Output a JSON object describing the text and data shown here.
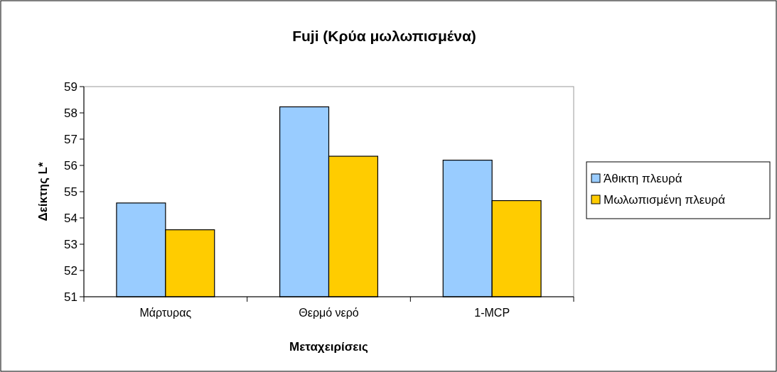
{
  "chart_data": {
    "type": "bar",
    "title": "Fuji (Κρύα μωλωπισμένα)",
    "xlabel": "Μεταχειρίσεις",
    "ylabel": "Δείκτης L*",
    "categories": [
      "Μάρτυρας",
      "Θερμό νερό",
      "1-MCP"
    ],
    "series": [
      {
        "name": "Άθικτη πλευρά",
        "color": "#99ccff",
        "values": [
          54.57,
          58.23,
          56.2
        ]
      },
      {
        "name": "Μωλωπισμένη πλευρά",
        "color": "#ffcc00",
        "values": [
          53.55,
          56.35,
          54.66
        ]
      }
    ],
    "ylim": [
      51,
      59
    ],
    "yticks": [
      51,
      52,
      53,
      54,
      55,
      56,
      57,
      58,
      59
    ],
    "grid": false,
    "legend": "right"
  }
}
